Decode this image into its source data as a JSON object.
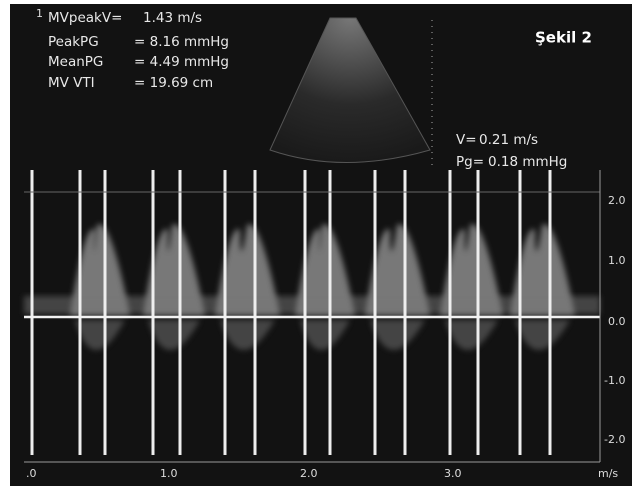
{
  "figure_label": "Şekil 2",
  "measurements": [
    {
      "index": "1",
      "label": "MVpeakV=",
      "value": "1.43 m/s"
    },
    {
      "label": "PeakPG",
      "value": "= 8.16 mmHg"
    },
    {
      "label": "MeanPG",
      "value": "= 4.49 mmHg"
    },
    {
      "label": "MV VTI",
      "value": "= 19.69 cm"
    }
  ],
  "cursor_readout": [
    {
      "label": "V=",
      "value": "0.21 m/s"
    },
    {
      "label": "Pg=",
      "value": "0.18 mmHg"
    }
  ],
  "velocity_scale": [
    "2.0",
    "1.0",
    "0.0",
    "-1.0",
    "-2.0"
  ],
  "time_scale": [
    ".0",
    "1.0",
    "2.0",
    "3.0"
  ],
  "unit": "m/s"
}
